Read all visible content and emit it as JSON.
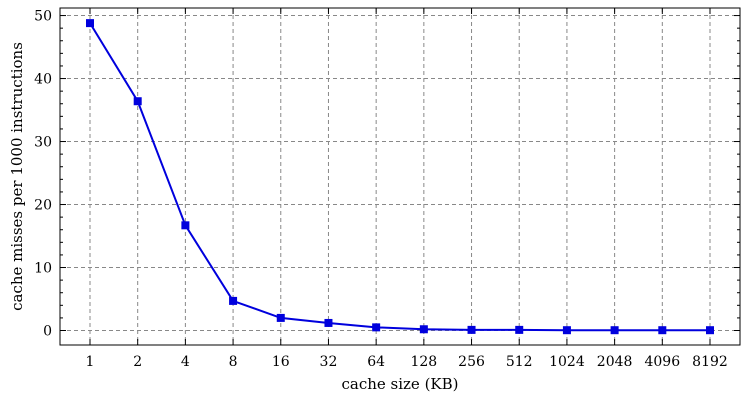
{
  "chart_data": {
    "type": "line",
    "categories": [
      "1",
      "2",
      "4",
      "8",
      "16",
      "32",
      "64",
      "128",
      "256",
      "512",
      "1024",
      "2048",
      "4096",
      "8192"
    ],
    "series": [
      {
        "values": [
          48.8,
          36.4,
          16.7,
          4.7,
          2.0,
          1.2,
          0.5,
          0.2,
          0.1,
          0.1,
          0.05,
          0.05,
          0.05,
          0.05
        ]
      }
    ],
    "xlabel": "cache size (KB)",
    "ylabel": "cache misses per 1000 instructions",
    "ylim": [
      -2.3,
      51.2
    ],
    "yticks": [
      0,
      10,
      20,
      30,
      40,
      50
    ],
    "grid": true,
    "line_color": "#0000dd",
    "marker": "square"
  }
}
